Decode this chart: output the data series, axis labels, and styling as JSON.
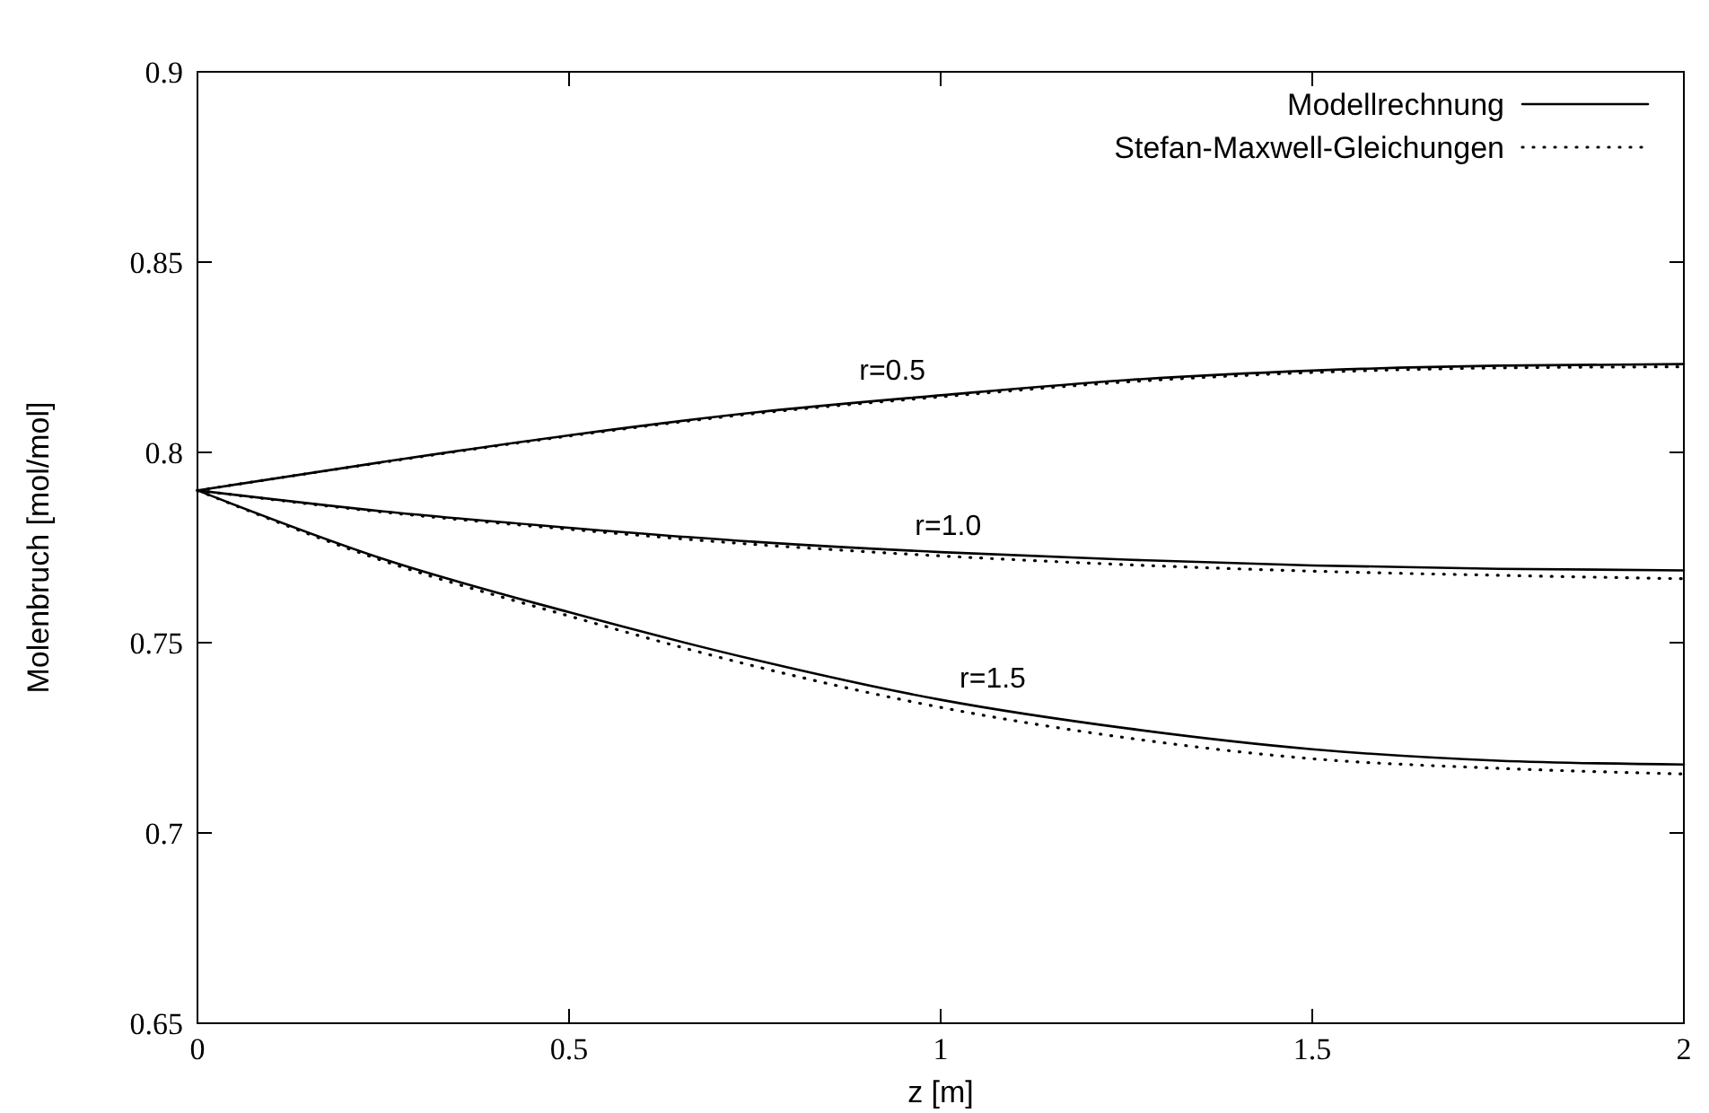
{
  "chart_data": {
    "type": "line",
    "xlabel": "z [m]",
    "ylabel": "Molenbruch [mol/mol]",
    "x": [
      0,
      0.25,
      0.5,
      0.75,
      1,
      1.25,
      1.5,
      1.75,
      2
    ],
    "series": [
      {
        "name": "Modellrechnung",
        "color": "#000000",
        "line_style": "solid",
        "values": [
          0.79,
          0.7975,
          0.8045,
          0.8105,
          0.815,
          0.819,
          0.8215,
          0.8228,
          0.8232
        ]
      },
      {
        "name": "Stefan-Maxwell-Gleichungen",
        "color": "#000000",
        "line_style": "dotted",
        "values": [
          0.79,
          0.7974,
          0.8043,
          0.8102,
          0.8146,
          0.8185,
          0.821,
          0.8222,
          0.8225
        ]
      },
      {
        "color": "#000000",
        "line_style": "solid",
        "values": [
          0.79,
          0.7845,
          0.7802,
          0.7765,
          0.7738,
          0.7718,
          0.7703,
          0.7694,
          0.769
        ]
      },
      {
        "color": "#000000",
        "line_style": "dotted",
        "values": [
          0.79,
          0.7843,
          0.7798,
          0.7758,
          0.7728,
          0.7705,
          0.7688,
          0.7677,
          0.7668
        ]
      },
      {
        "color": "#000000",
        "line_style": "solid",
        "values": [
          0.79,
          0.772,
          0.758,
          0.7455,
          0.735,
          0.7275,
          0.722,
          0.719,
          0.718
        ]
      },
      {
        "color": "#000000",
        "line_style": "dotted",
        "values": [
          0.79,
          0.7715,
          0.757,
          0.7438,
          0.733,
          0.725,
          0.7195,
          0.717,
          0.7155
        ]
      }
    ],
    "xlim": [
      0,
      2
    ],
    "ylim": [
      0.65,
      0.9
    ],
    "xticks": [
      0,
      0.5,
      1,
      1.5,
      2
    ],
    "yticks": [
      0.65,
      0.7,
      0.75,
      0.8,
      0.85,
      0.9
    ],
    "grid": false,
    "legend": "top right",
    "annotations": [
      {
        "text": "r=0.5",
        "x": 0.935,
        "y": 0.8143
      },
      {
        "text": "r=1.0",
        "x": 1.01,
        "y": 0.7737
      },
      {
        "text": "r=1.5",
        "x": 1.07,
        "y": 0.7335
      }
    ]
  }
}
